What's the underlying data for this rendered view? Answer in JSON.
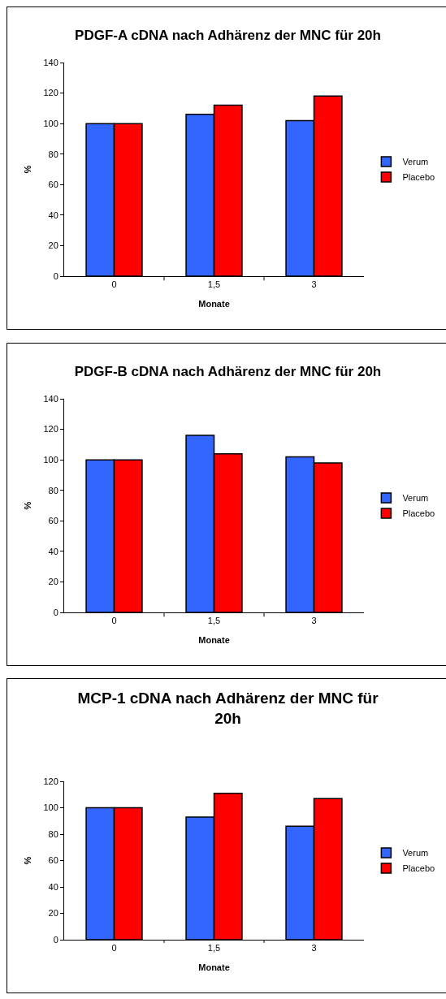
{
  "chart_data": [
    {
      "type": "bar",
      "title": "PDGF-A cDNA nach Adhärenz der MNC für 20h",
      "xlabel": "Monate",
      "ylabel": "%",
      "categories": [
        "0",
        "1,5",
        "3"
      ],
      "series": [
        {
          "name": "Verum",
          "color": "#3366ff",
          "values": [
            100,
            106,
            102
          ]
        },
        {
          "name": "Placebo",
          "color": "#ff0000",
          "values": [
            100,
            112,
            118
          ]
        }
      ],
      "ylim": [
        0,
        140
      ],
      "yticks": [
        0,
        20,
        40,
        60,
        80,
        100,
        120,
        140
      ],
      "grid": false,
      "legend": "right"
    },
    {
      "type": "bar",
      "title": "PDGF-B cDNA nach Adhärenz der MNC für 20h",
      "xlabel": "Monate",
      "ylabel": "%",
      "categories": [
        "0",
        "1,5",
        "3"
      ],
      "series": [
        {
          "name": "Verum",
          "color": "#3366ff",
          "values": [
            100,
            116,
            102
          ]
        },
        {
          "name": "Placebo",
          "color": "#ff0000",
          "values": [
            100,
            104,
            98
          ]
        }
      ],
      "ylim": [
        0,
        140
      ],
      "yticks": [
        0,
        20,
        40,
        60,
        80,
        100,
        120,
        140
      ],
      "grid": false,
      "legend": "right"
    },
    {
      "type": "bar",
      "title": "MCP-1 cDNA nach Adhärenz der MNC für 20h",
      "xlabel": "Monate",
      "ylabel": "%",
      "categories": [
        "0",
        "1,5",
        "3"
      ],
      "series": [
        {
          "name": "Verum",
          "color": "#3366ff",
          "values": [
            100,
            93,
            86
          ]
        },
        {
          "name": "Placebo",
          "color": "#ff0000",
          "values": [
            100,
            111,
            107
          ]
        }
      ],
      "ylim": [
        0,
        120
      ],
      "yticks": [
        0,
        20,
        40,
        60,
        80,
        100,
        120
      ],
      "grid": false,
      "legend": "right"
    }
  ]
}
